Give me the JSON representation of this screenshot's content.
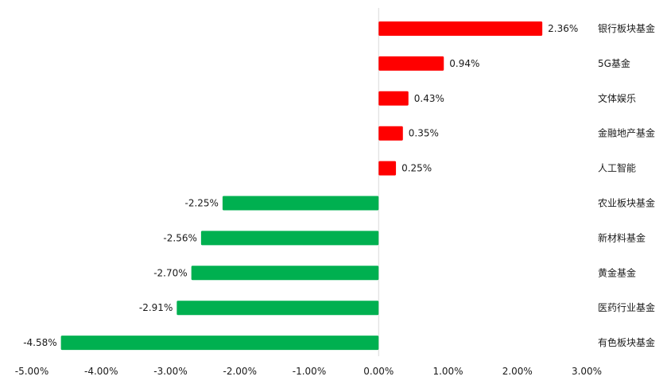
{
  "chart_data": {
    "type": "bar",
    "orientation": "horizontal",
    "categories": [
      "银行板块基金",
      "5G基金",
      "文体娱乐",
      "金融地产基金",
      "人工智能",
      "农业板块基金",
      "新材料基金",
      "黄金基金",
      "医药行业基金",
      "有色板块基金"
    ],
    "values": [
      2.36,
      0.94,
      0.43,
      0.35,
      0.25,
      -2.25,
      -2.56,
      -2.7,
      -2.91,
      -4.58
    ],
    "value_labels": [
      "2.36%",
      "0.94%",
      "0.43%",
      "0.35%",
      "0.25%",
      "-2.25%",
      "-2.56%",
      "-2.70%",
      "-2.91%",
      "-4.58%"
    ],
    "xlim": [
      -5,
      3
    ],
    "x_ticks": [
      -5,
      -4,
      -3,
      -2,
      -1,
      0,
      1,
      2,
      3
    ],
    "x_tick_labels": [
      "-5.00%",
      "-4.00%",
      "-3.00%",
      "-2.00%",
      "-1.00%",
      "0.00%",
      "1.00%",
      "2.00%",
      "3.00%"
    ],
    "title": "",
    "xlabel": "",
    "ylabel": "",
    "grid": false,
    "legend": "none",
    "colors": {
      "positive": "#ff0000",
      "negative": "#00b050",
      "zero_line": "#d9d9d9"
    }
  }
}
